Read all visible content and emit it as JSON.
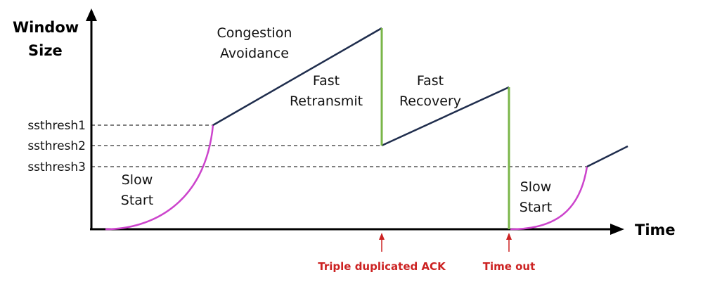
{
  "axes": {
    "y_label_line1": "Window",
    "y_label_line2": "Size",
    "x_label": "Time"
  },
  "thresholds": [
    {
      "label": "ssthresh1"
    },
    {
      "label": "ssthresh2"
    },
    {
      "label": "ssthresh3"
    }
  ],
  "phases": {
    "slow_start_1": {
      "line1": "Slow",
      "line2": "Start"
    },
    "congestion_avoidance": {
      "line1": "Congestion",
      "line2": "Avoidance"
    },
    "fast_retransmit": {
      "line1": "Fast",
      "line2": "Retransmit"
    },
    "fast_recovery": {
      "line1": "Fast",
      "line2": "Recovery"
    },
    "slow_start_2": {
      "line1": "Slow",
      "line2": "Start"
    }
  },
  "events": {
    "triple_ack": "Triple duplicated ACK",
    "timeout": "Time out"
  },
  "colors": {
    "axis": "#000000",
    "linear_growth": "#1f2d4d",
    "slow_start_curve": "#cc44cc",
    "drop": "#7ab648",
    "event": "#cc2222",
    "dashed": "#333333"
  }
}
